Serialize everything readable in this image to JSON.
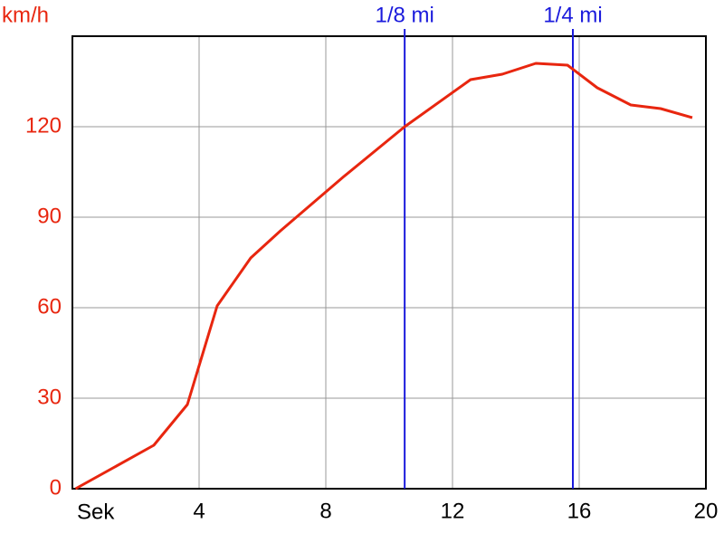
{
  "chart_data": {
    "type": "line",
    "y_label": "km/h",
    "x_label": "Sek",
    "x": [
      0.1,
      2.57,
      3.63,
      4.57,
      5.63,
      6.57,
      7.57,
      8.57,
      10.49,
      12.57,
      13.57,
      14.63,
      15.63,
      16.57,
      17.63,
      18.57,
      19.57
    ],
    "series": [
      {
        "color": "#e8260f",
        "values": [
          0,
          14.4,
          27.9,
          60.6,
          76.5,
          85.5,
          94.5,
          103.5,
          120,
          135.6,
          137.4,
          141,
          140.4,
          132.9,
          127.2,
          126,
          123
        ]
      }
    ],
    "xlim": [
      0,
      20
    ],
    "xticks": [
      4,
      8,
      12,
      16,
      20
    ],
    "ylim": [
      0,
      150
    ],
    "yticks": [
      0,
      30,
      60,
      90,
      120
    ],
    "grid": true,
    "axis_label_color": "#e8260f",
    "markers": [
      {
        "label": "1/8 mi",
        "x": 10.49
      },
      {
        "label": "1/4 mi",
        "x": 15.8
      }
    ],
    "marker_color": "#1a1adc"
  }
}
